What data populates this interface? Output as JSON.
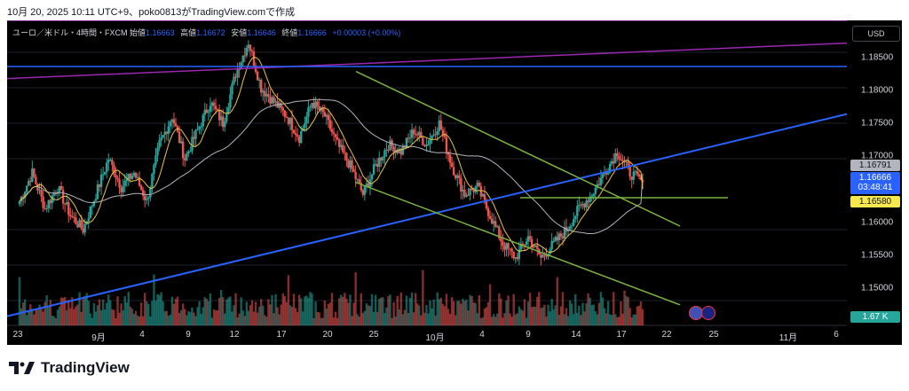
{
  "caption": "10月 20, 2025 10:11 UTC+9、poko0813がTradingView.comで作成",
  "legend": {
    "symbol": "ユーロ／米ドル・4時間・FXCM",
    "open_label": "始値",
    "open": "1.16663",
    "high_label": "高値",
    "high": "1.16672",
    "low_label": "安値",
    "low": "1.16646",
    "close_label": "終値",
    "close": "1.16666",
    "change": "+0.00003 (+0.00%)"
  },
  "currency_button": "USD",
  "price_axis_labels": [
    "1.18500",
    "1.18000",
    "1.17500",
    "1.17000",
    "1.16000",
    "1.15500",
    "1.15000"
  ],
  "tags": {
    "ma_value": "1.16791",
    "last_price": "1.16666",
    "countdown": "03:48:41",
    "support": "1.16580",
    "volume": "1.67 K"
  },
  "date_axis_labels": [
    "23",
    "9月",
    "4",
    "9",
    "12",
    "17",
    "20",
    "25",
    "10月",
    "4",
    "9",
    "14",
    "17",
    "22",
    "25",
    "11月",
    "6"
  ],
  "brand": "TradingView",
  "colors": {
    "background": "#000000",
    "up": "#26a69a",
    "down": "#ef5350",
    "ma_short": "#e8c547",
    "ma_long": "#b2b5be",
    "trendline": "#2962ff",
    "channel": "#7cb342",
    "magenta": "#9c27b0"
  },
  "chart_data": {
    "type": "candlestick",
    "title": "ユーロ／米ドル・4時間・FXCM",
    "ylim": [
      1.1465,
      1.1895
    ],
    "y_ticks": [
      1.185,
      1.18,
      1.175,
      1.17,
      1.16,
      1.155,
      1.15
    ],
    "x_ticks": [
      "23",
      "9月",
      "4",
      "9",
      "12",
      "17",
      "20",
      "25",
      "10月",
      "4",
      "9",
      "14",
      "17",
      "22",
      "25",
      "11月",
      "6"
    ],
    "price_path_approx": [
      1.164,
      1.168,
      1.163,
      1.166,
      1.162,
      1.16,
      1.165,
      1.17,
      1.166,
      1.168,
      1.164,
      1.172,
      1.176,
      1.17,
      1.174,
      1.178,
      1.175,
      1.182,
      1.1865,
      1.18,
      1.178,
      1.176,
      1.173,
      1.178,
      1.176,
      1.172,
      1.169,
      1.165,
      1.169,
      1.172,
      1.171,
      1.174,
      1.172,
      1.175,
      1.169,
      1.165,
      1.166,
      1.162,
      1.158,
      1.156,
      1.159,
      1.156,
      1.158,
      1.16,
      1.163,
      1.165,
      1.168,
      1.171,
      1.168,
      1.1667
    ],
    "last_close": 1.16666,
    "ma_short_value": 1.1658,
    "ma_long_value": 1.16791,
    "volume_last": "1.67 K",
    "legend": [
      "始値 1.16663",
      "高値 1.16672",
      "安値 1.16646",
      "終値 1.16666"
    ]
  }
}
